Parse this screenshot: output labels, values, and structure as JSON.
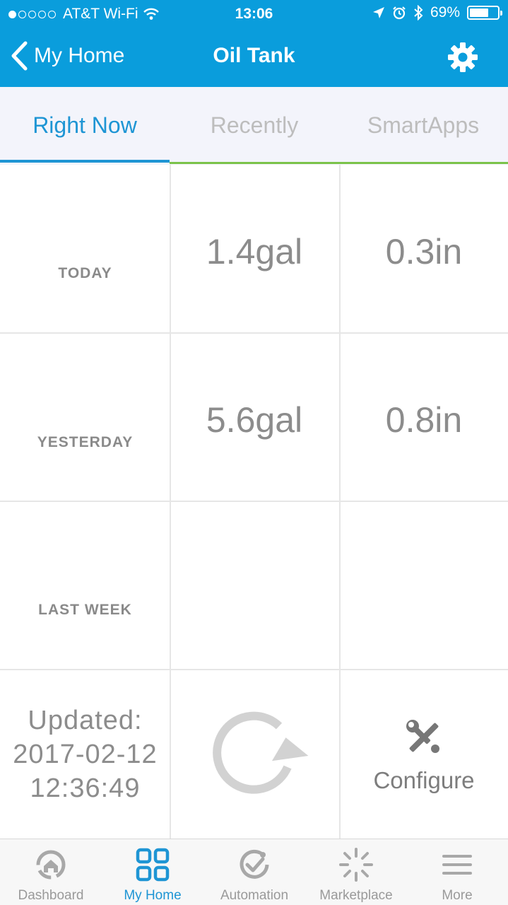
{
  "status_bar": {
    "carrier": "AT&T Wi-Fi",
    "time": "13:06",
    "battery": "69%",
    "battery_level": 0.69,
    "signal_bars_filled": 1,
    "signal_bars_total": 5
  },
  "nav": {
    "back_label": "My Home",
    "title": "Oil Tank",
    "settings_icon": "gear-icon"
  },
  "tabs": [
    {
      "label": "Right Now",
      "active": true
    },
    {
      "label": "Recently",
      "active": false
    },
    {
      "label": "SmartApps",
      "active": false
    }
  ],
  "rows": [
    {
      "label": "TODAY",
      "volume": "1.4gal",
      "depth": "0.3in"
    },
    {
      "label": "YESTERDAY",
      "volume": "5.6gal",
      "depth": "0.8in"
    },
    {
      "label": "LAST WEEK",
      "volume": "",
      "depth": ""
    }
  ],
  "footer_row": {
    "updated_label": "Updated:",
    "updated_date": "2017-02-12",
    "updated_time": "12:36:49",
    "refresh_icon": "refresh-icon",
    "configure_label": "Configure",
    "configure_icon": "wrench-screwdriver-icon"
  },
  "bottom_nav": [
    {
      "label": "Dashboard",
      "icon": "dashboard-icon",
      "active": false
    },
    {
      "label": "My Home",
      "icon": "grid-icon",
      "active": true
    },
    {
      "label": "Automation",
      "icon": "automation-icon",
      "active": false
    },
    {
      "label": "Marketplace",
      "icon": "marketplace-icon",
      "active": false
    },
    {
      "label": "More",
      "icon": "menu-icon",
      "active": false
    }
  ],
  "colors": {
    "header": "#0a9ddc",
    "accent": "#1e95d4",
    "tab_border": "#7bc34a",
    "inactive": "#bdbdbd"
  }
}
